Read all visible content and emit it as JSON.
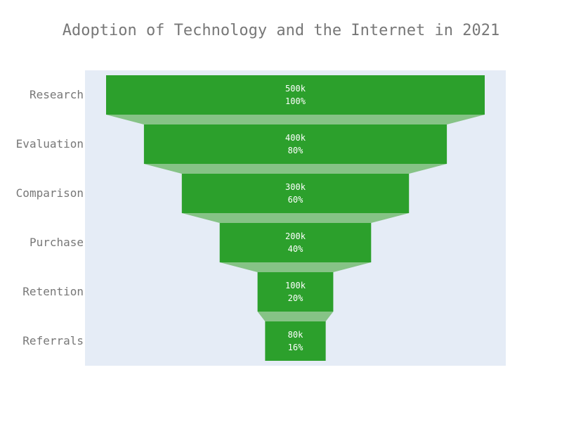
{
  "chart_data": {
    "type": "funnel",
    "title": "Adoption of Technology and the Internet in 2021",
    "categories": [
      "Research",
      "Evaluation",
      "Comparison",
      "Purchase",
      "Retention",
      "Referrals"
    ],
    "values": [
      500000,
      400000,
      300000,
      200000,
      100000,
      80000
    ],
    "value_labels": [
      "500k",
      "400k",
      "300k",
      "200k",
      "100k",
      "80k"
    ],
    "percent_labels": [
      "100%",
      "80%",
      "60%",
      "40%",
      "20%",
      "16%"
    ],
    "xlabel": "",
    "ylabel": "",
    "colors": {
      "bar": "#2ca02c",
      "connector": "#86c386",
      "plot_background": "#e5ecf6",
      "text": "#777777",
      "bar_text": "#ffffff"
    }
  }
}
